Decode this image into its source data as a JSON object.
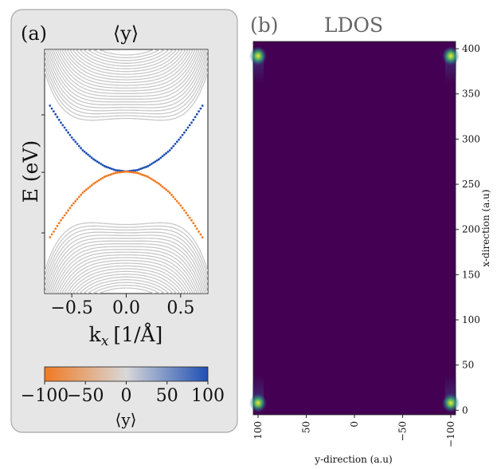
{
  "chart_data": [
    {
      "type": "scatter",
      "panel_label": "(a)",
      "title": "⟨y⟩",
      "xlabel": "k",
      "xlabel_sub": "x",
      "xlabel_unit": "[1/Å]",
      "ylabel": "E (eV)",
      "xlim": [
        -0.75,
        0.75
      ],
      "xticks": [
        -0.5,
        0.0,
        0.5
      ],
      "xtick_labels": [
        "−0.5",
        "0.0",
        "0.5"
      ],
      "bulk_bands_color": "#c8c8c8",
      "series": [
        {
          "color": "#1f4fb4",
          "points": [
            [
              -0.7,
              0.62
            ],
            [
              -0.6,
              0.46
            ],
            [
              -0.5,
              0.32
            ],
            [
              -0.4,
              0.2
            ],
            [
              -0.3,
              0.115
            ],
            [
              -0.2,
              0.05
            ],
            [
              -0.1,
              0.013
            ],
            [
              0.0,
              0.0
            ],
            [
              0.1,
              0.013
            ],
            [
              0.2,
              0.05
            ],
            [
              0.3,
              0.115
            ],
            [
              0.4,
              0.2
            ],
            [
              0.5,
              0.32
            ],
            [
              0.6,
              0.46
            ],
            [
              0.7,
              0.62
            ]
          ]
        },
        {
          "color": "#f07a22",
          "points": [
            [
              -0.7,
              -0.62
            ],
            [
              -0.6,
              -0.46
            ],
            [
              -0.5,
              -0.32
            ],
            [
              -0.4,
              -0.2
            ],
            [
              -0.3,
              -0.115
            ],
            [
              -0.2,
              -0.05
            ],
            [
              -0.1,
              -0.013
            ],
            [
              0.0,
              0.0
            ],
            [
              0.1,
              -0.013
            ],
            [
              0.2,
              -0.05
            ],
            [
              0.3,
              -0.115
            ],
            [
              0.4,
              -0.2
            ],
            [
              0.5,
              -0.32
            ],
            [
              0.6,
              -0.46
            ],
            [
              0.7,
              -0.62
            ]
          ]
        }
      ],
      "colorbar": {
        "label": "⟨y⟩",
        "range": [
          -100,
          100
        ],
        "colors": [
          "#f07a22",
          "#d8d8d8",
          "#1f4fb4"
        ],
        "ticks": [
          "−100",
          "−50",
          "0",
          "50",
          "100"
        ]
      }
    },
    {
      "type": "heatmap",
      "panel_label": "(b)",
      "title": "LDOS",
      "xlabel": "y-direction (a.u)",
      "ylabel": "x-direction (a.u)",
      "xlim": [
        105,
        -105
      ],
      "ylim": [
        -5,
        408
      ],
      "xticks": [
        100,
        50,
        0,
        -50,
        -100
      ],
      "xtick_labels": [
        "100",
        "50",
        "0",
        "−50",
        "−100"
      ],
      "yticks": [
        0,
        50,
        100,
        150,
        200,
        250,
        300,
        350,
        400
      ],
      "ytick_labels": [
        "0",
        "50",
        "100",
        "150",
        "200",
        "250",
        "300",
        "350",
        "400"
      ],
      "background_color": "#440154",
      "hotspots": [
        {
          "y": 100,
          "x": 392,
          "color": "#fde725"
        },
        {
          "y": -100,
          "x": 392,
          "color": "#fde725"
        },
        {
          "y": 100,
          "x": 8,
          "color": "#fde725"
        },
        {
          "y": -100,
          "x": 8,
          "color": "#fde725"
        }
      ]
    }
  ]
}
